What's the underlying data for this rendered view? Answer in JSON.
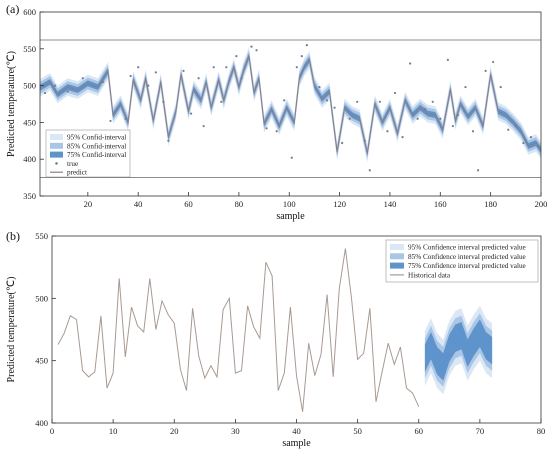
{
  "chart_data": [
    {
      "panel_label": "(a)",
      "type": "line",
      "xlabel": "sample",
      "ylabel": "Predicted temperature(℃)",
      "xlim": [
        1,
        200
      ],
      "ylim": [
        350,
        600
      ],
      "x_ticks": [
        20,
        40,
        60,
        80,
        100,
        120,
        140,
        160,
        180,
        200
      ],
      "y_ticks": [
        350,
        400,
        450,
        500,
        550,
        600
      ],
      "reference_lines": [
        375,
        562
      ],
      "legend": {
        "placement": "bottom-left",
        "entries": [
          {
            "label": "95% Confid-interval",
            "color": "#dbe7f4"
          },
          {
            "label": "85% Confid-interval",
            "color": "#a9c6e6"
          },
          {
            "label": "75% Confid-interval",
            "color": "#5e93cc"
          },
          {
            "label": "true",
            "color": "#6f7f8f"
          },
          {
            "label": "predict",
            "color": "#8b7f86"
          }
        ]
      },
      "predict": [
        {
          "x": 1,
          "y": 497
        },
        {
          "x": 5,
          "y": 505
        },
        {
          "x": 8,
          "y": 488
        },
        {
          "x": 12,
          "y": 498
        },
        {
          "x": 16,
          "y": 494
        },
        {
          "x": 20,
          "y": 503
        },
        {
          "x": 24,
          "y": 498
        },
        {
          "x": 28,
          "y": 520
        },
        {
          "x": 30,
          "y": 460
        },
        {
          "x": 33,
          "y": 475
        },
        {
          "x": 36,
          "y": 450
        },
        {
          "x": 38,
          "y": 508
        },
        {
          "x": 41,
          "y": 480
        },
        {
          "x": 43,
          "y": 510
        },
        {
          "x": 46,
          "y": 452
        },
        {
          "x": 49,
          "y": 505
        },
        {
          "x": 52,
          "y": 430
        },
        {
          "x": 55,
          "y": 465
        },
        {
          "x": 57,
          "y": 515
        },
        {
          "x": 60,
          "y": 465
        },
        {
          "x": 62,
          "y": 495
        },
        {
          "x": 65,
          "y": 480
        },
        {
          "x": 67,
          "y": 505
        },
        {
          "x": 69,
          "y": 470
        },
        {
          "x": 72,
          "y": 508
        },
        {
          "x": 74,
          "y": 480
        },
        {
          "x": 76,
          "y": 505
        },
        {
          "x": 78,
          "y": 525
        },
        {
          "x": 80,
          "y": 498
        },
        {
          "x": 82,
          "y": 522
        },
        {
          "x": 84,
          "y": 540
        },
        {
          "x": 86,
          "y": 490
        },
        {
          "x": 88,
          "y": 510
        },
        {
          "x": 90,
          "y": 448
        },
        {
          "x": 93,
          "y": 468
        },
        {
          "x": 96,
          "y": 445
        },
        {
          "x": 99,
          "y": 470
        },
        {
          "x": 102,
          "y": 450
        },
        {
          "x": 104,
          "y": 510
        },
        {
          "x": 106,
          "y": 525
        },
        {
          "x": 108,
          "y": 535
        },
        {
          "x": 110,
          "y": 500
        },
        {
          "x": 113,
          "y": 482
        },
        {
          "x": 116,
          "y": 492
        },
        {
          "x": 119,
          "y": 410
        },
        {
          "x": 122,
          "y": 470
        },
        {
          "x": 125,
          "y": 460
        },
        {
          "x": 128,
          "y": 455
        },
        {
          "x": 131,
          "y": 408
        },
        {
          "x": 134,
          "y": 475
        },
        {
          "x": 137,
          "y": 450
        },
        {
          "x": 140,
          "y": 470
        },
        {
          "x": 143,
          "y": 435
        },
        {
          "x": 146,
          "y": 480
        },
        {
          "x": 149,
          "y": 460
        },
        {
          "x": 152,
          "y": 470
        },
        {
          "x": 155,
          "y": 462
        },
        {
          "x": 158,
          "y": 460
        },
        {
          "x": 161,
          "y": 440
        },
        {
          "x": 164,
          "y": 495
        },
        {
          "x": 166,
          "y": 452
        },
        {
          "x": 168,
          "y": 475
        },
        {
          "x": 171,
          "y": 458
        },
        {
          "x": 174,
          "y": 470
        },
        {
          "x": 177,
          "y": 445
        },
        {
          "x": 180,
          "y": 515
        },
        {
          "x": 183,
          "y": 465
        },
        {
          "x": 186,
          "y": 460
        },
        {
          "x": 189,
          "y": 450
        },
        {
          "x": 192,
          "y": 438
        },
        {
          "x": 195,
          "y": 418
        },
        {
          "x": 198,
          "y": 422
        },
        {
          "x": 200,
          "y": 412
        }
      ],
      "true": [
        {
          "x": 3,
          "y": 490
        },
        {
          "x": 7,
          "y": 500
        },
        {
          "x": 12,
          "y": 492
        },
        {
          "x": 18,
          "y": 510
        },
        {
          "x": 26,
          "y": 505
        },
        {
          "x": 29,
          "y": 452
        },
        {
          "x": 35,
          "y": 455
        },
        {
          "x": 37,
          "y": 513
        },
        {
          "x": 40,
          "y": 525
        },
        {
          "x": 44,
          "y": 500
        },
        {
          "x": 47,
          "y": 518
        },
        {
          "x": 50,
          "y": 478
        },
        {
          "x": 52,
          "y": 425
        },
        {
          "x": 58,
          "y": 520
        },
        {
          "x": 61,
          "y": 462
        },
        {
          "x": 64,
          "y": 510
        },
        {
          "x": 66,
          "y": 445
        },
        {
          "x": 70,
          "y": 525
        },
        {
          "x": 73,
          "y": 478
        },
        {
          "x": 75,
          "y": 525
        },
        {
          "x": 79,
          "y": 540
        },
        {
          "x": 81,
          "y": 510
        },
        {
          "x": 85,
          "y": 553
        },
        {
          "x": 87,
          "y": 548
        },
        {
          "x": 91,
          "y": 442
        },
        {
          "x": 95,
          "y": 438
        },
        {
          "x": 98,
          "y": 480
        },
        {
          "x": 101,
          "y": 402
        },
        {
          "x": 103,
          "y": 525
        },
        {
          "x": 105,
          "y": 540
        },
        {
          "x": 107,
          "y": 555
        },
        {
          "x": 112,
          "y": 498
        },
        {
          "x": 115,
          "y": 480
        },
        {
          "x": 118,
          "y": 470
        },
        {
          "x": 121,
          "y": 422
        },
        {
          "x": 124,
          "y": 455
        },
        {
          "x": 127,
          "y": 478
        },
        {
          "x": 130,
          "y": 425
        },
        {
          "x": 132,
          "y": 385
        },
        {
          "x": 136,
          "y": 478
        },
        {
          "x": 139,
          "y": 438
        },
        {
          "x": 142,
          "y": 490
        },
        {
          "x": 145,
          "y": 430
        },
        {
          "x": 148,
          "y": 530
        },
        {
          "x": 151,
          "y": 455
        },
        {
          "x": 154,
          "y": 468
        },
        {
          "x": 157,
          "y": 478
        },
        {
          "x": 160,
          "y": 455
        },
        {
          "x": 163,
          "y": 535
        },
        {
          "x": 165,
          "y": 445
        },
        {
          "x": 167,
          "y": 460
        },
        {
          "x": 170,
          "y": 498
        },
        {
          "x": 173,
          "y": 438
        },
        {
          "x": 175,
          "y": 385
        },
        {
          "x": 178,
          "y": 520
        },
        {
          "x": 181,
          "y": 532
        },
        {
          "x": 184,
          "y": 498
        },
        {
          "x": 187,
          "y": 440
        },
        {
          "x": 190,
          "y": 445
        },
        {
          "x": 193,
          "y": 422
        },
        {
          "x": 196,
          "y": 430
        },
        {
          "x": 199,
          "y": 418
        }
      ],
      "band_half_widths": {
        "95": 12,
        "85": 8,
        "75": 4
      }
    },
    {
      "panel_label": "(b)",
      "type": "line",
      "xlabel": "sample",
      "ylabel": "Predicted temperature(℃)",
      "xlim": [
        0,
        80
      ],
      "ylim": [
        400,
        550
      ],
      "x_ticks": [
        0,
        10,
        20,
        30,
        40,
        50,
        60,
        70,
        80
      ],
      "y_ticks": [
        400,
        450,
        500,
        550
      ],
      "legend": {
        "placement": "top-right",
        "entries": [
          {
            "label": "95% Confidence interval predicted value",
            "color": "#dbe7f4"
          },
          {
            "label": "85% Confidence interval predicted value",
            "color": "#a9c6e6"
          },
          {
            "label": "75% Confidence interval predicted value",
            "color": "#5e93cc"
          },
          {
            "label": "Historical data",
            "color": "#a89a92"
          }
        ]
      },
      "historical": [
        {
          "x": 1,
          "y": 463
        },
        {
          "x": 2,
          "y": 472
        },
        {
          "x": 3,
          "y": 486
        },
        {
          "x": 4,
          "y": 483
        },
        {
          "x": 5,
          "y": 442
        },
        {
          "x": 6,
          "y": 437
        },
        {
          "x": 7,
          "y": 441
        },
        {
          "x": 8,
          "y": 486
        },
        {
          "x": 9,
          "y": 428
        },
        {
          "x": 10,
          "y": 440
        },
        {
          "x": 11,
          "y": 516
        },
        {
          "x": 12,
          "y": 453
        },
        {
          "x": 13,
          "y": 493
        },
        {
          "x": 14,
          "y": 478
        },
        {
          "x": 15,
          "y": 473
        },
        {
          "x": 16,
          "y": 516
        },
        {
          "x": 17,
          "y": 475
        },
        {
          "x": 18,
          "y": 498
        },
        {
          "x": 19,
          "y": 487
        },
        {
          "x": 20,
          "y": 480
        },
        {
          "x": 21,
          "y": 443
        },
        {
          "x": 22,
          "y": 426
        },
        {
          "x": 23,
          "y": 492
        },
        {
          "x": 24,
          "y": 454
        },
        {
          "x": 25,
          "y": 436
        },
        {
          "x": 26,
          "y": 446
        },
        {
          "x": 27,
          "y": 437
        },
        {
          "x": 28,
          "y": 491
        },
        {
          "x": 29,
          "y": 500
        },
        {
          "x": 30,
          "y": 440
        },
        {
          "x": 31,
          "y": 442
        },
        {
          "x": 32,
          "y": 494
        },
        {
          "x": 33,
          "y": 477
        },
        {
          "x": 34,
          "y": 468
        },
        {
          "x": 35,
          "y": 529
        },
        {
          "x": 36,
          "y": 518
        },
        {
          "x": 37,
          "y": 426
        },
        {
          "x": 38,
          "y": 440
        },
        {
          "x": 39,
          "y": 493
        },
        {
          "x": 40,
          "y": 438
        },
        {
          "x": 41,
          "y": 409
        },
        {
          "x": 42,
          "y": 464
        },
        {
          "x": 43,
          "y": 438
        },
        {
          "x": 44,
          "y": 455
        },
        {
          "x": 45,
          "y": 503
        },
        {
          "x": 46,
          "y": 437
        },
        {
          "x": 47,
          "y": 508
        },
        {
          "x": 48,
          "y": 540
        },
        {
          "x": 49,
          "y": 500
        },
        {
          "x": 50,
          "y": 451
        },
        {
          "x": 51,
          "y": 456
        },
        {
          "x": 52,
          "y": 492
        },
        {
          "x": 53,
          "y": 417
        },
        {
          "x": 54,
          "y": 441
        },
        {
          "x": 55,
          "y": 464
        },
        {
          "x": 56,
          "y": 447
        },
        {
          "x": 57,
          "y": 461
        },
        {
          "x": 58,
          "y": 428
        },
        {
          "x": 59,
          "y": 424
        },
        {
          "x": 60,
          "y": 413
        }
      ],
      "forecast_center": [
        {
          "x": 61,
          "y": 452
        },
        {
          "x": 62,
          "y": 462
        },
        {
          "x": 63,
          "y": 450
        },
        {
          "x": 64,
          "y": 445
        },
        {
          "x": 65,
          "y": 460
        },
        {
          "x": 66,
          "y": 468
        },
        {
          "x": 67,
          "y": 470
        },
        {
          "x": 68,
          "y": 456
        },
        {
          "x": 69,
          "y": 465
        },
        {
          "x": 70,
          "y": 472
        },
        {
          "x": 71,
          "y": 462
        },
        {
          "x": 72,
          "y": 458
        }
      ],
      "forecast_half_widths": {
        "95": 22,
        "85": 16,
        "75": 11
      }
    }
  ]
}
